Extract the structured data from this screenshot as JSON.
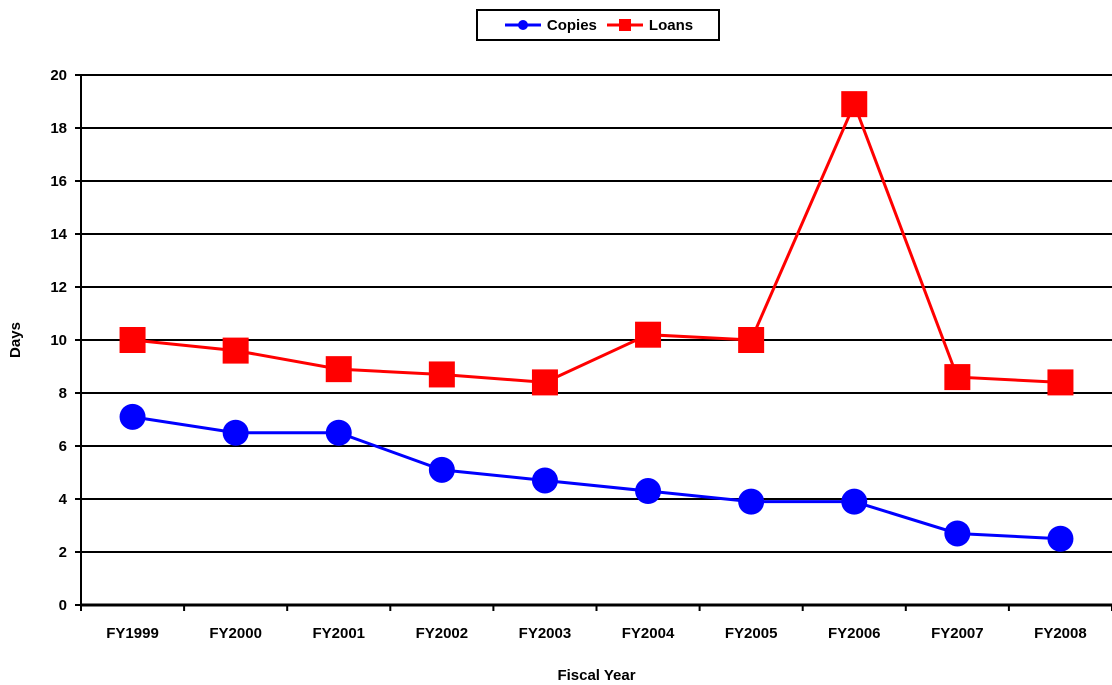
{
  "chart_data": {
    "type": "line",
    "categories": [
      "FY1999",
      "FY2000",
      "FY2001",
      "FY2002",
      "FY2003",
      "FY2004",
      "FY2005",
      "FY2006",
      "FY2007",
      "FY2008"
    ],
    "series": [
      {
        "name": "Copies",
        "color": "#0000ff",
        "marker": "circle",
        "values": [
          7.1,
          6.5,
          6.5,
          5.1,
          4.7,
          4.3,
          3.9,
          3.9,
          2.7,
          2.5
        ]
      },
      {
        "name": "Loans",
        "color": "#ff0000",
        "marker": "square",
        "values": [
          10.0,
          9.6,
          8.9,
          8.7,
          8.4,
          10.2,
          10.0,
          18.9,
          8.6,
          8.4
        ]
      }
    ],
    "xlabel": "Fiscal Year",
    "ylabel": "Days",
    "ylim": [
      0,
      20
    ],
    "yticks": [
      0,
      2,
      4,
      6,
      8,
      10,
      12,
      14,
      16,
      18,
      20
    ],
    "grid": true,
    "legend": "top-center"
  }
}
